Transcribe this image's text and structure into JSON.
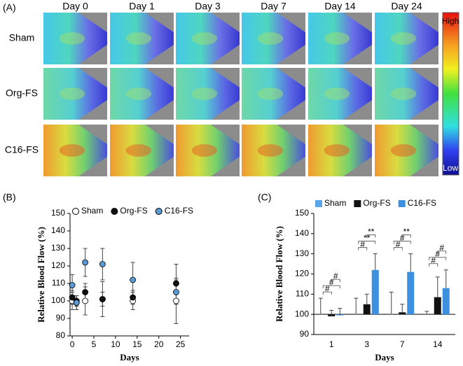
{
  "panel_a": {
    "label": "(A)",
    "columns": [
      "Day 0",
      "Day 1",
      "Day 3",
      "Day 7",
      "Day 14",
      "Day 24"
    ],
    "rows": [
      "Sham",
      "Org-FS",
      "C16-FS"
    ],
    "colorbar": {
      "high": "High",
      "low": "Low"
    }
  },
  "chart_data": [
    {
      "type": "scatter",
      "label": "(B)",
      "ylabel": "Relative Blood Flow (%)",
      "xlabel": "Days",
      "x": [
        0,
        1,
        3,
        7,
        14,
        24
      ],
      "xlim": [
        -0.5,
        27
      ],
      "xticks": [
        0,
        5,
        10,
        15,
        20,
        25
      ],
      "ylim": [
        80,
        150
      ],
      "yticks": [
        80,
        90,
        100,
        110,
        120,
        130,
        140,
        150
      ],
      "series": [
        {
          "name": "Sham",
          "color": "#ffffff",
          "values": [
            100,
            99,
            100,
            101,
            100,
            100
          ],
          "errors": [
            5,
            4,
            8,
            10,
            5,
            13
          ]
        },
        {
          "name": "Org-FS",
          "color": "#111111",
          "values": [
            102,
            100,
            105,
            101,
            102,
            110
          ],
          "errors": [
            4,
            3,
            5,
            4,
            4,
            11
          ]
        },
        {
          "name": "C16-FS",
          "color": "#5b9bd5",
          "values": [
            109,
            99,
            122,
            121,
            112,
            105
          ],
          "errors": [
            6,
            4,
            8,
            9,
            10,
            7
          ]
        }
      ]
    },
    {
      "type": "bar",
      "label": "(C)",
      "ylabel": "Relative Blood Flow (%)",
      "xlabel": "Days",
      "categories": [
        "1",
        "3",
        "7",
        "14"
      ],
      "ylim": [
        90,
        150
      ],
      "yticks": [
        90,
        100,
        110,
        120,
        130,
        140,
        150
      ],
      "reference_line": 100,
      "series": [
        {
          "name": "Sham",
          "color": "#5aa5e8",
          "values": [
            100,
            100,
            100,
            100
          ],
          "errors": [
            8,
            8,
            11,
            1.5
          ]
        },
        {
          "name": "Org-FS",
          "color": "#111111",
          "values": [
            99,
            105,
            101,
            108.5
          ],
          "errors": [
            3,
            5,
            4,
            10
          ]
        },
        {
          "name": "C16-FS",
          "color": "#3d8fe0",
          "values": [
            99.5,
            122,
            121,
            113
          ],
          "errors": [
            3.5,
            8,
            9,
            9
          ]
        }
      ],
      "significance": [
        [
          "#",
          "#",
          "#"
        ],
        [
          "#",
          "**",
          "**"
        ],
        [
          "#",
          "#",
          "**"
        ],
        [
          "#",
          "#",
          "#"
        ]
      ]
    }
  ]
}
